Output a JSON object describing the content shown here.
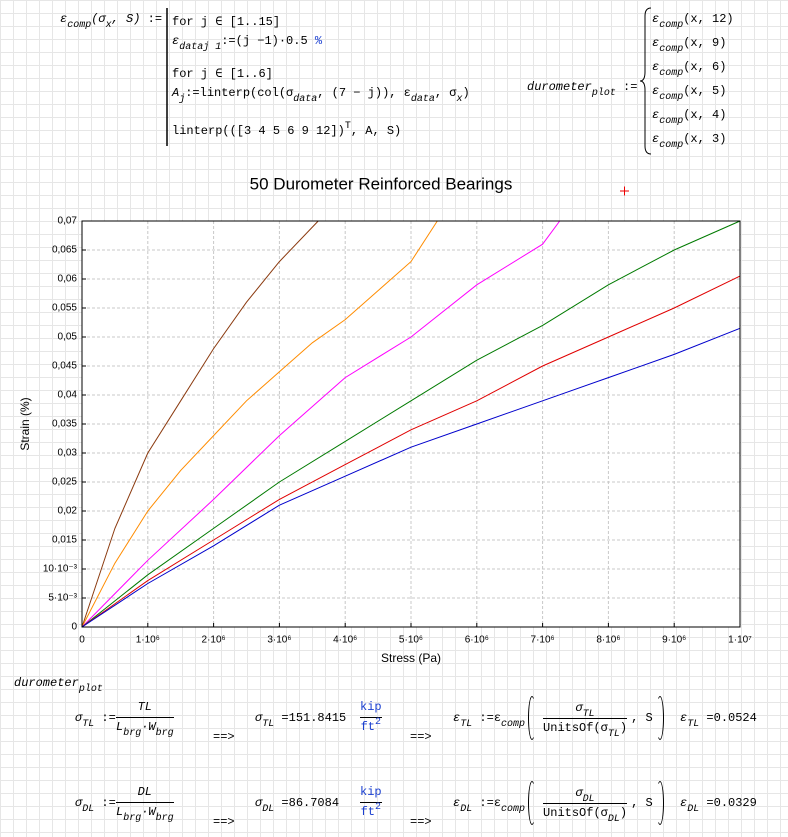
{
  "worksheet": {
    "def_lhs": [
      "ε",
      "comp",
      "(σ",
      "x",
      ", S)",
      " :="
    ],
    "program": [
      [
        "for j ∈ [1..15]"
      ],
      [
        "ε",
        "data",
        "j 1",
        ":=(j −1)·0.5",
        " %"
      ],
      [
        "for j ∈ [1..6]"
      ],
      [
        "A",
        "j",
        ":=linterp(col(σ",
        "data",
        ", (7 − j)), ε",
        "data",
        ", σ",
        "x",
        ")"
      ],
      [
        "linterp(([3 4 5 6 9 12])",
        "T",
        ", A, S)"
      ]
    ],
    "plot_def": [
      "durometer",
      "plot",
      " :="
    ],
    "plot_items": [
      [
        "ε",
        "comp",
        "(x, 12)"
      ],
      [
        "ε",
        "comp",
        "(x, 9)"
      ],
      [
        "ε",
        "comp",
        "(x, 6)"
      ],
      [
        "ε",
        "comp",
        "(x, 5)"
      ],
      [
        "ε",
        "comp",
        "(x, 4)"
      ],
      [
        "ε",
        "comp",
        "(x, 3)"
      ]
    ],
    "plot_label": [
      "durometer",
      "plot"
    ],
    "rows": [
      {
        "lhs": [
          "σ",
          "TL",
          " :="
        ],
        "num": [
          "TL"
        ],
        "den": [
          "L",
          "brg",
          "·W",
          "brg"
        ],
        "arrow1": [
          "==>"
        ],
        "result": [
          "σ",
          "TL",
          " =151.8415"
        ],
        "unit_num": [
          "kip"
        ],
        "unit_den": [
          "ft",
          "2"
        ],
        "arrow2": [
          "==>"
        ],
        "eps_def": [
          "ε",
          "TL",
          " :=ε",
          "comp"
        ],
        "eps_num": [
          "σ",
          "TL"
        ],
        "eps_den": [
          "UnitsOf(σ",
          "TL",
          ")"
        ],
        "eps_tail": [
          ", S"
        ],
        "eps_result": [
          "ε",
          "TL",
          " =0.0524"
        ]
      },
      {
        "lhs": [
          "σ",
          "DL",
          " :="
        ],
        "num": [
          "DL"
        ],
        "den": [
          "L",
          "brg",
          "·W",
          "brg"
        ],
        "arrow1": [
          "==>"
        ],
        "result": [
          "σ",
          "DL",
          " =86.7084"
        ],
        "unit_num": [
          "kip"
        ],
        "unit_den": [
          "ft",
          "2"
        ],
        "arrow2": [
          "==>"
        ],
        "eps_def": [
          "ε",
          "DL",
          " :=ε",
          "comp"
        ],
        "eps_num": [
          "σ",
          "DL"
        ],
        "eps_den": [
          "UnitsOf(σ",
          "DL",
          ")"
        ],
        "eps_tail": [
          ", S"
        ],
        "eps_result": [
          "ε",
          "DL",
          " =0.0329"
        ]
      }
    ]
  },
  "chart_data": {
    "type": "line",
    "title": "50  Durometer  Reinforced  Bearings",
    "x_label": "Stress (Pa)",
    "y_label": "Strain (%)",
    "grid": true,
    "xlim": [
      0,
      10000000
    ],
    "ylim": [
      0,
      0.07
    ],
    "xticks": [
      0,
      {
        "value": 1000000,
        "label": "1·10⁶"
      },
      {
        "value": 2000000,
        "label": "2·10⁶"
      },
      {
        "value": 3000000,
        "label": "3·10⁶"
      },
      {
        "value": 4000000,
        "label": "4·10⁶"
      },
      {
        "value": 5000000,
        "label": "5·10⁶"
      },
      {
        "value": 6000000,
        "label": "6·10⁶"
      },
      {
        "value": 7000000,
        "label": "7·10⁶"
      },
      {
        "value": 8000000,
        "label": "8·10⁶"
      },
      {
        "value": 9000000,
        "label": "9·10⁶"
      },
      {
        "value": 10000000,
        "label": "1·10⁷"
      }
    ],
    "yticks": [
      0,
      {
        "value": 0.005,
        "label": "5·10⁻³"
      },
      {
        "value": 0.01,
        "label": "10·10⁻³"
      },
      {
        "value": 0.015,
        "label": "0,015"
      },
      {
        "value": 0.02,
        "label": "0,02"
      },
      {
        "value": 0.025,
        "label": "0,025"
      },
      {
        "value": 0.03,
        "label": "0,03"
      },
      {
        "value": 0.035,
        "label": "0,035"
      },
      {
        "value": 0.04,
        "label": "0,04"
      },
      {
        "value": 0.045,
        "label": "0,045"
      },
      {
        "value": 0.05,
        "label": "0,05"
      },
      {
        "value": 0.055,
        "label": "0,055"
      },
      {
        "value": 0.06,
        "label": "0,06"
      },
      {
        "value": 0.065,
        "label": "0,065"
      },
      {
        "value": 0.07,
        "label": "0,07"
      }
    ],
    "series": [
      {
        "color": "#8b3a0f",
        "x": [
          0,
          500000,
          1000000,
          1500000,
          2000000,
          2500000,
          3000000,
          3590000
        ],
        "values": [
          0,
          0.017,
          0.03,
          0.039,
          0.048,
          0.056,
          0.063,
          0.07
        ]
      },
      {
        "color": "#ff8c00",
        "x": [
          0,
          500000,
          1000000,
          1500000,
          2000000,
          2500000,
          3000000,
          3500000,
          4000000,
          4500000,
          5000000,
          5400000
        ],
        "values": [
          0,
          0.011,
          0.02,
          0.027,
          0.033,
          0.039,
          0.044,
          0.049,
          0.053,
          0.058,
          0.063,
          0.07
        ]
      },
      {
        "color": "#ff00ff",
        "x": [
          0,
          1000000,
          2000000,
          3000000,
          4000000,
          5000000,
          6000000,
          7000000,
          7260000
        ],
        "values": [
          0,
          0.0115,
          0.022,
          0.033,
          0.043,
          0.05,
          0.059,
          0.066,
          0.07
        ]
      },
      {
        "color": "#007a00",
        "x": [
          0,
          1000000,
          2000000,
          3000000,
          4000000,
          5000000,
          6000000,
          7000000,
          8000000,
          9000000,
          10000000
        ],
        "values": [
          0,
          0.009,
          0.017,
          0.025,
          0.032,
          0.039,
          0.046,
          0.052,
          0.059,
          0.065,
          0.07
        ]
      },
      {
        "color": "#e00000",
        "x": [
          0,
          1000000,
          2000000,
          3000000,
          4000000,
          5000000,
          6000000,
          7000000,
          8000000,
          9000000,
          10000000
        ],
        "values": [
          0,
          0.008,
          0.015,
          0.022,
          0.028,
          0.034,
          0.039,
          0.045,
          0.05,
          0.055,
          0.0605
        ]
      },
      {
        "color": "#0000cc",
        "x": [
          0,
          1000000,
          2000000,
          3000000,
          4000000,
          5000000,
          6000000,
          7000000,
          8000000,
          9000000,
          10000000
        ],
        "values": [
          0,
          0.0075,
          0.014,
          0.021,
          0.026,
          0.031,
          0.035,
          0.039,
          0.043,
          0.047,
          0.0515
        ]
      }
    ]
  }
}
